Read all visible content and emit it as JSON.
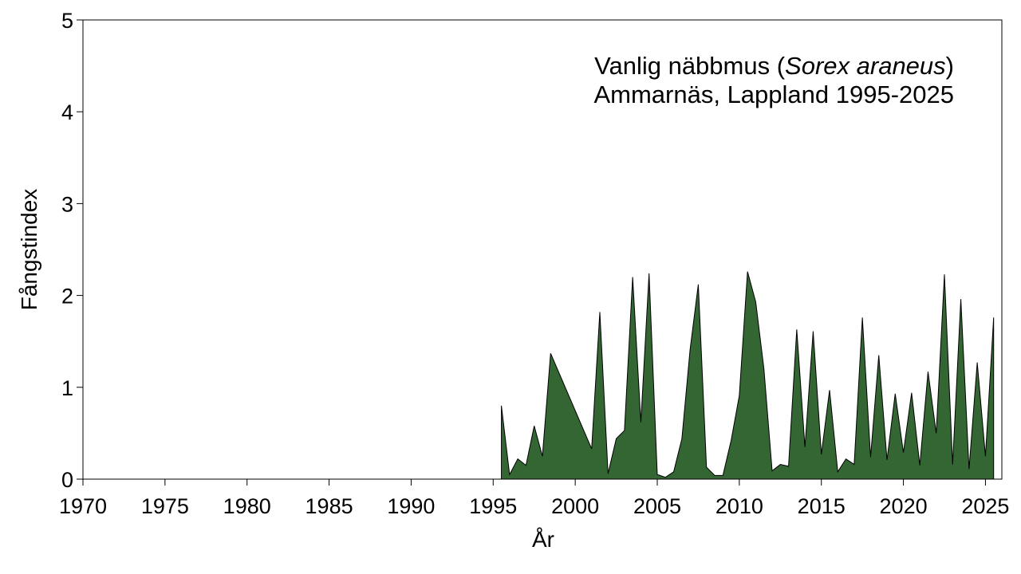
{
  "chart_data": {
    "type": "area",
    "title_line1_prefix": "Vanlig näbbmus",
    "title_line1_italic": "Sorex araneus",
    "title_line2": "Ammarnäs, Lappland 1995-2025",
    "xlabel": "År",
    "ylabel": "Fångstindex",
    "xlim": [
      1970,
      2026
    ],
    "ylim": [
      0,
      5
    ],
    "xticks": [
      1970,
      1975,
      1980,
      1985,
      1990,
      1995,
      2000,
      2005,
      2010,
      2015,
      2020,
      2025
    ],
    "yticks": [
      0,
      1,
      2,
      3,
      4,
      5
    ],
    "grid": false,
    "fill_color": "#336633",
    "edge_color": "#000000",
    "x": [
      1995.5,
      1996.0,
      1996.5,
      1997.0,
      1997.5,
      1998.0,
      1998.5,
      2001.0,
      2001.5,
      2002.0,
      2002.5,
      2003.0,
      2003.5,
      2004.0,
      2004.5,
      2005.0,
      2005.5,
      2006.0,
      2006.5,
      2007.0,
      2007.5,
      2008.0,
      2008.5,
      2009.0,
      2009.5,
      2010.0,
      2010.5,
      2011.0,
      2011.5,
      2012.0,
      2012.5,
      2013.0,
      2013.5,
      2014.0,
      2014.5,
      2015.0,
      2015.5,
      2016.0,
      2016.5,
      2017.0,
      2017.5,
      2018.0,
      2018.5,
      2019.0,
      2019.5,
      2020.0,
      2020.5,
      2021.0,
      2021.5,
      2022.0,
      2022.5,
      2023.0,
      2023.5,
      2024.0,
      2024.5,
      2025.0,
      2025.5
    ],
    "y": [
      0.8,
      0.05,
      0.22,
      0.15,
      0.58,
      0.25,
      1.37,
      0.33,
      1.82,
      0.06,
      0.44,
      0.53,
      2.2,
      0.62,
      2.24,
      0.05,
      0.02,
      0.08,
      0.44,
      1.41,
      2.12,
      0.13,
      0.04,
      0.04,
      0.42,
      0.91,
      2.26,
      1.93,
      1.2,
      0.09,
      0.16,
      0.14,
      1.63,
      0.35,
      1.61,
      0.27,
      0.97,
      0.08,
      0.22,
      0.16,
      1.76,
      0.24,
      1.35,
      0.21,
      0.93,
      0.29,
      0.94,
      0.15,
      1.17,
      0.5,
      2.23,
      0.16,
      1.96,
      0.11,
      1.27,
      0.25,
      1.76
    ]
  }
}
